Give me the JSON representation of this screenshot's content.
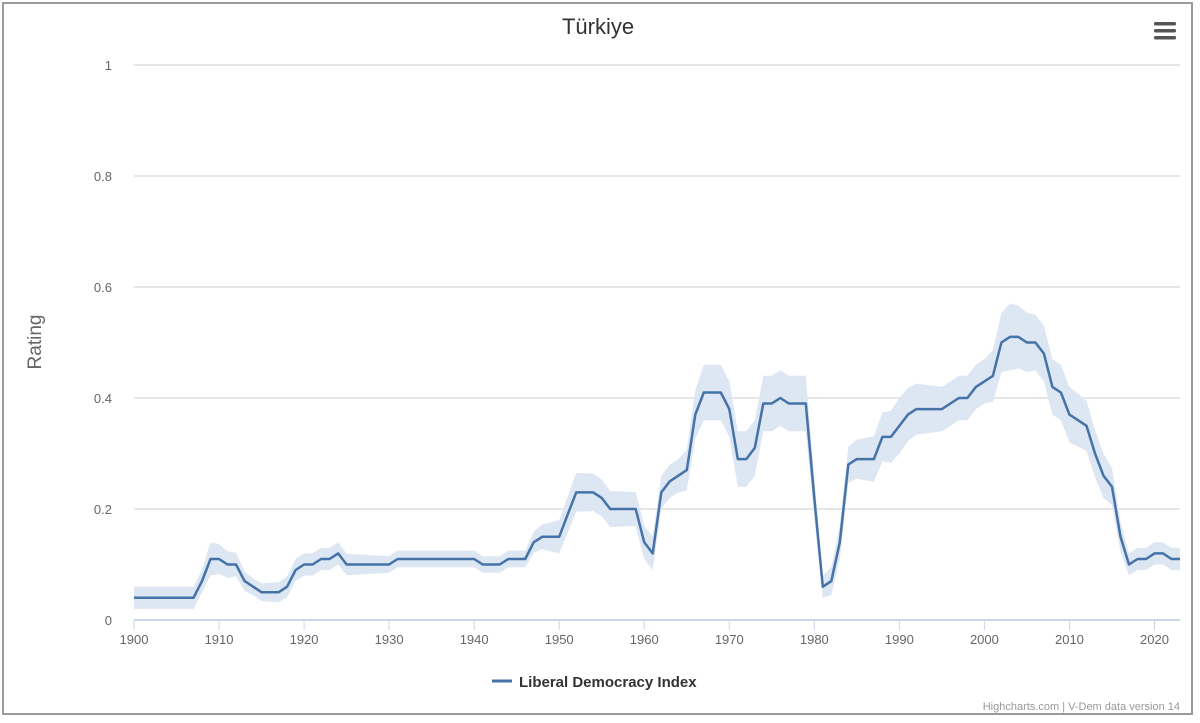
{
  "chart_data": {
    "type": "line",
    "title": "Türkiye",
    "ylabel": "Rating",
    "xlabel": "",
    "xlim": [
      1900,
      2023
    ],
    "ylim": [
      0,
      1
    ],
    "x_ticks": [
      1900,
      1910,
      1920,
      1930,
      1940,
      1950,
      1960,
      1970,
      1980,
      1990,
      2000,
      2010,
      2020
    ],
    "y_ticks": [
      {
        "value": 0,
        "label": "0"
      },
      {
        "value": 0.2,
        "label": "0.2"
      },
      {
        "value": 0.4,
        "label": "0.4"
      },
      {
        "value": 0.6,
        "label": "0.6"
      },
      {
        "value": 0.8,
        "label": "0.8"
      },
      {
        "value": 1,
        "label": "1"
      }
    ],
    "grid": true,
    "legend_position": "bottom-center",
    "series": [
      {
        "name": "Liberal Democracy Index",
        "color": "#4572a7",
        "band_color": "#dde6f3",
        "points": [
          [
            1900,
            0.04
          ],
          [
            1901,
            0.04
          ],
          [
            1902,
            0.04
          ],
          [
            1903,
            0.04
          ],
          [
            1904,
            0.04
          ],
          [
            1905,
            0.04
          ],
          [
            1906,
            0.04
          ],
          [
            1907,
            0.04
          ],
          [
            1908,
            0.07
          ],
          [
            1909,
            0.11
          ],
          [
            1910,
            0.11
          ],
          [
            1911,
            0.1
          ],
          [
            1912,
            0.1
          ],
          [
            1913,
            0.07
          ],
          [
            1914,
            0.06
          ],
          [
            1915,
            0.05
          ],
          [
            1916,
            0.05
          ],
          [
            1917,
            0.05
          ],
          [
            1918,
            0.06
          ],
          [
            1919,
            0.09
          ],
          [
            1920,
            0.1
          ],
          [
            1921,
            0.1
          ],
          [
            1922,
            0.11
          ],
          [
            1923,
            0.11
          ],
          [
            1924,
            0.12
          ],
          [
            1925,
            0.1
          ],
          [
            1926,
            0.1
          ],
          [
            1927,
            0.1
          ],
          [
            1928,
            0.1
          ],
          [
            1929,
            0.1
          ],
          [
            1930,
            0.1
          ],
          [
            1931,
            0.11
          ],
          [
            1932,
            0.11
          ],
          [
            1933,
            0.11
          ],
          [
            1934,
            0.11
          ],
          [
            1935,
            0.11
          ],
          [
            1936,
            0.11
          ],
          [
            1937,
            0.11
          ],
          [
            1938,
            0.11
          ],
          [
            1939,
            0.11
          ],
          [
            1940,
            0.11
          ],
          [
            1941,
            0.1
          ],
          [
            1942,
            0.1
          ],
          [
            1943,
            0.1
          ],
          [
            1944,
            0.11
          ],
          [
            1945,
            0.11
          ],
          [
            1946,
            0.11
          ],
          [
            1947,
            0.14
          ],
          [
            1948,
            0.15
          ],
          [
            1949,
            0.15
          ],
          [
            1950,
            0.15
          ],
          [
            1951,
            0.19
          ],
          [
            1952,
            0.23
          ],
          [
            1953,
            0.23
          ],
          [
            1954,
            0.23
          ],
          [
            1955,
            0.22
          ],
          [
            1956,
            0.2
          ],
          [
            1957,
            0.2
          ],
          [
            1958,
            0.2
          ],
          [
            1959,
            0.2
          ],
          [
            1960,
            0.14
          ],
          [
            1961,
            0.12
          ],
          [
            1962,
            0.23
          ],
          [
            1963,
            0.25
          ],
          [
            1964,
            0.26
          ],
          [
            1965,
            0.27
          ],
          [
            1966,
            0.37
          ],
          [
            1967,
            0.41
          ],
          [
            1968,
            0.41
          ],
          [
            1969,
            0.41
          ],
          [
            1970,
            0.38
          ],
          [
            1971,
            0.29
          ],
          [
            1972,
            0.29
          ],
          [
            1973,
            0.31
          ],
          [
            1974,
            0.39
          ],
          [
            1975,
            0.39
          ],
          [
            1976,
            0.4
          ],
          [
            1977,
            0.39
          ],
          [
            1978,
            0.39
          ],
          [
            1979,
            0.39
          ],
          [
            1980,
            0.22
          ],
          [
            1981,
            0.06
          ],
          [
            1982,
            0.07
          ],
          [
            1983,
            0.14
          ],
          [
            1984,
            0.28
          ],
          [
            1985,
            0.29
          ],
          [
            1986,
            0.29
          ],
          [
            1987,
            0.29
          ],
          [
            1988,
            0.33
          ],
          [
            1989,
            0.33
          ],
          [
            1990,
            0.35
          ],
          [
            1991,
            0.37
          ],
          [
            1992,
            0.38
          ],
          [
            1993,
            0.38
          ],
          [
            1994,
            0.38
          ],
          [
            1995,
            0.38
          ],
          [
            1996,
            0.39
          ],
          [
            1997,
            0.4
          ],
          [
            1998,
            0.4
          ],
          [
            1999,
            0.42
          ],
          [
            2000,
            0.43
          ],
          [
            2001,
            0.44
          ],
          [
            2002,
            0.5
          ],
          [
            2003,
            0.51
          ],
          [
            2004,
            0.51
          ],
          [
            2005,
            0.5
          ],
          [
            2006,
            0.5
          ],
          [
            2007,
            0.48
          ],
          [
            2008,
            0.42
          ],
          [
            2009,
            0.41
          ],
          [
            2010,
            0.37
          ],
          [
            2011,
            0.36
          ],
          [
            2012,
            0.35
          ],
          [
            2013,
            0.3
          ],
          [
            2014,
            0.26
          ],
          [
            2015,
            0.24
          ],
          [
            2016,
            0.15
          ],
          [
            2017,
            0.1
          ],
          [
            2018,
            0.11
          ],
          [
            2019,
            0.11
          ],
          [
            2020,
            0.12
          ],
          [
            2021,
            0.12
          ],
          [
            2022,
            0.11
          ],
          [
            2023,
            0.11
          ]
        ],
        "band_halfwidth": [
          [
            1900,
            0.02
          ],
          [
            1908,
            0.02
          ],
          [
            1909,
            0.03
          ],
          [
            1914,
            0.015
          ],
          [
            1919,
            0.02
          ],
          [
            1924,
            0.02
          ],
          [
            1930,
            0.015
          ],
          [
            1946,
            0.015
          ],
          [
            1950,
            0.03
          ],
          [
            1952,
            0.035
          ],
          [
            1960,
            0.03
          ],
          [
            1964,
            0.03
          ],
          [
            1967,
            0.05
          ],
          [
            1970,
            0.05
          ],
          [
            1972,
            0.05
          ],
          [
            1976,
            0.05
          ],
          [
            1979,
            0.05
          ],
          [
            1981,
            0.02
          ],
          [
            1983,
            0.03
          ],
          [
            1985,
            0.035
          ],
          [
            1990,
            0.05
          ],
          [
            1995,
            0.04
          ],
          [
            2000,
            0.04
          ],
          [
            2003,
            0.06
          ],
          [
            2006,
            0.05
          ],
          [
            2010,
            0.05
          ],
          [
            2014,
            0.04
          ],
          [
            2017,
            0.02
          ],
          [
            2023,
            0.02
          ]
        ]
      }
    ],
    "credits": "Highcharts.com | V-Dem data version 14"
  },
  "icons": {
    "menu": "hamburger-menu-icon"
  }
}
